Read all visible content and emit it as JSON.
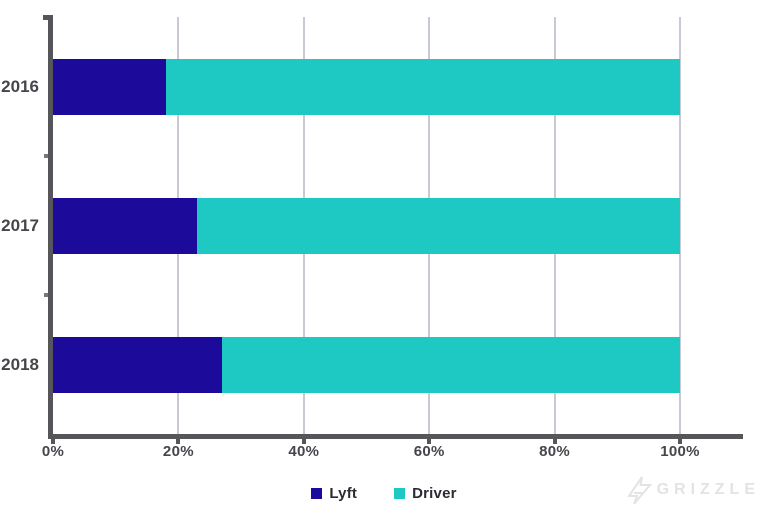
{
  "watermark": {
    "text": "GRIZZLE"
  },
  "colors": {
    "lyft": "#1C0A9B",
    "driver": "#1FC9C3",
    "axis": "#55555A",
    "tick_label": "#45454B",
    "gridline": "#C9C9D4",
    "legend_text": "#2B2B31",
    "watermark": "#E3E3E6",
    "background": "#FFFFFF"
  },
  "chart_data": {
    "type": "bar",
    "orientation": "horizontal",
    "stacked": true,
    "title": "",
    "categories": [
      "2016",
      "2017",
      "2018"
    ],
    "series": [
      {
        "name": "Lyft",
        "color": "#1C0A9B",
        "values": [
          18,
          23,
          27
        ]
      },
      {
        "name": "Driver",
        "color": "#1FC9C3",
        "values": [
          82,
          77,
          73
        ]
      }
    ],
    "x_axis": {
      "tick_values": [
        0,
        20,
        40,
        60,
        80,
        100
      ],
      "tick_labels": [
        "0%",
        "20%",
        "40%",
        "60%",
        "80%",
        "100%"
      ],
      "min": 0,
      "max": 110,
      "unit": "percent"
    },
    "grid": "vertical",
    "legend_position": "bottom"
  }
}
